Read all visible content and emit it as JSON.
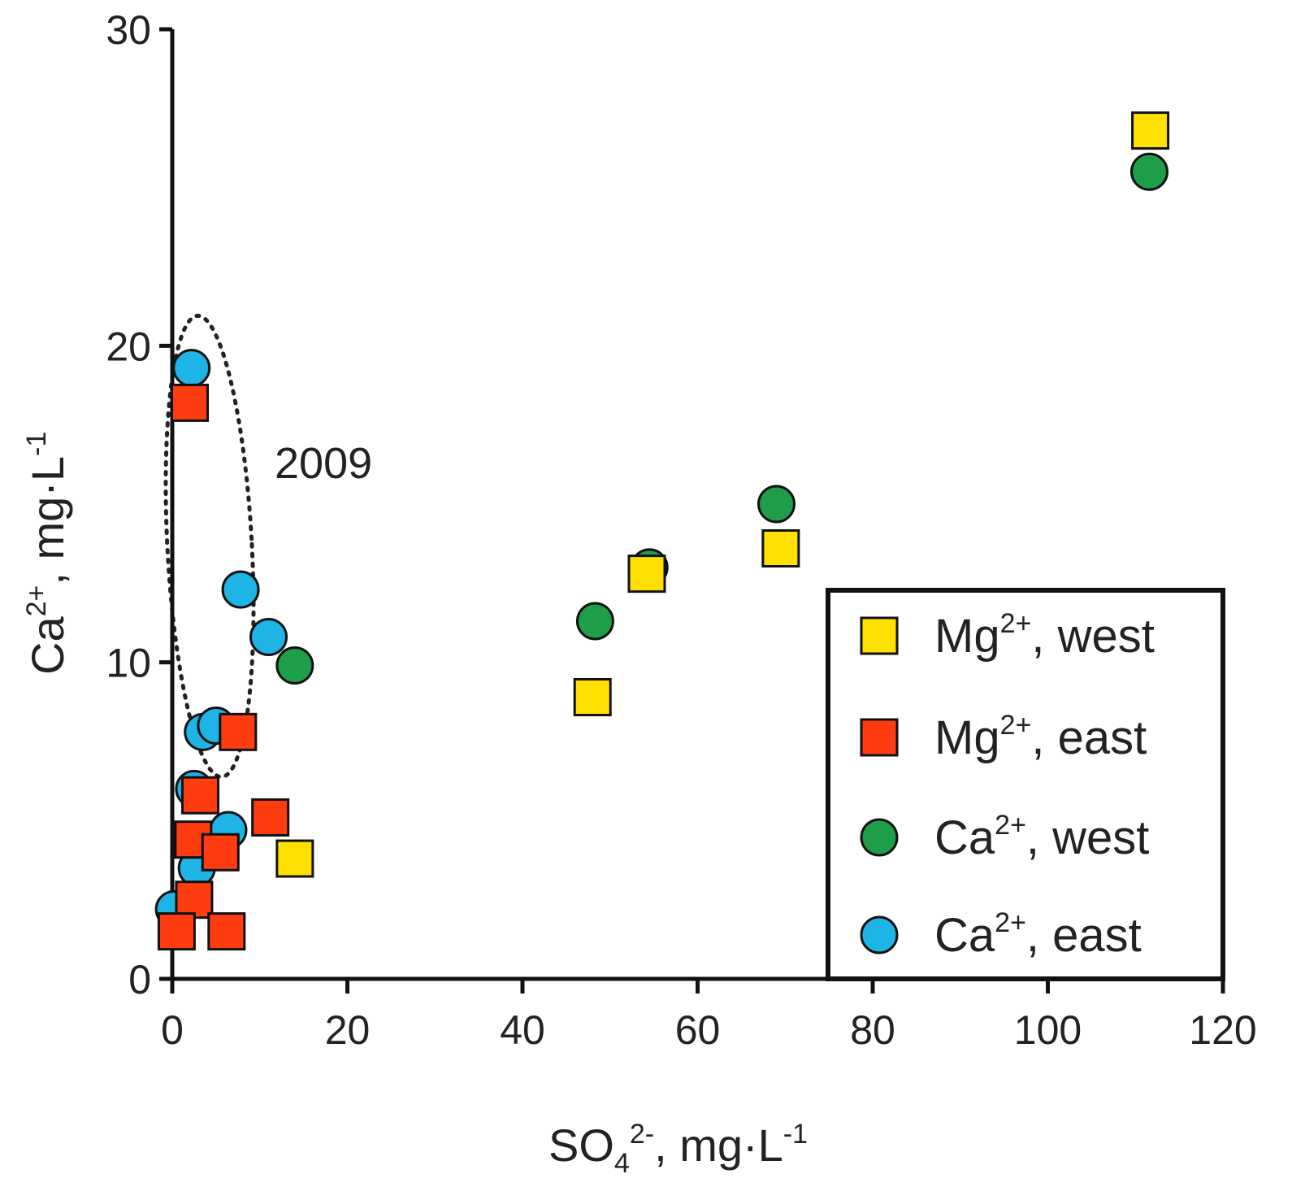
{
  "chart_data": {
    "type": "scatter",
    "xlabel": {
      "base": "SO",
      "sub": "4",
      "sup": "2-",
      "unit": ", mg·L",
      "unit_sup": "-1"
    },
    "ylabel": {
      "base": "Ca",
      "sup": "2+",
      "unit": ", mg·L",
      "unit_sup": "-1"
    },
    "xlim": [
      0,
      120
    ],
    "ylim": [
      0,
      30
    ],
    "xticks": [
      "0",
      "20",
      "40",
      "60",
      "80",
      "100",
      "120"
    ],
    "yticks": [
      "0",
      "10",
      "20",
      "30"
    ],
    "annotation": "2009",
    "legend": {
      "placement": "bottom-right",
      "entries": [
        {
          "base": "Mg",
          "sup": "2+",
          "rest": ", west"
        },
        {
          "base": "Mg",
          "sup": "2+",
          "rest": ", east"
        },
        {
          "base": "Ca",
          "sup": "2+",
          "rest": ", west"
        },
        {
          "base": "Ca",
          "sup": "2+",
          "rest": ", east"
        }
      ]
    },
    "series": [
      {
        "name": "Mg2+, west",
        "marker": "square",
        "color": "#FFE000",
        "points": [
          [
            14,
            3.8
          ],
          [
            48,
            8.9
          ],
          [
            54.2,
            12.8
          ],
          [
            69.5,
            13.6
          ],
          [
            111.7,
            26.8
          ]
        ]
      },
      {
        "name": "Mg2+, east",
        "marker": "square",
        "color": "#FF3C10",
        "points": [
          [
            2,
            18.2
          ],
          [
            7.5,
            7.8
          ],
          [
            3.2,
            5.8
          ],
          [
            11.2,
            5.1
          ],
          [
            2.4,
            4.4
          ],
          [
            5.5,
            4.0
          ],
          [
            2.5,
            2.5
          ],
          [
            0.5,
            1.5
          ],
          [
            6.2,
            1.5
          ]
        ]
      },
      {
        "name": "Ca2+, west",
        "marker": "circle",
        "color": "#1E9E48",
        "points": [
          [
            14,
            9.9
          ],
          [
            48.3,
            11.3
          ],
          [
            54.5,
            13.0
          ],
          [
            69,
            15.0
          ],
          [
            111.6,
            25.5
          ]
        ]
      },
      {
        "name": "Ca2+, east",
        "marker": "circle",
        "color": "#1EB4E6",
        "points": [
          [
            2.2,
            19.3
          ],
          [
            7.8,
            12.3
          ],
          [
            11,
            10.8
          ],
          [
            3.5,
            7.8
          ],
          [
            5,
            8.0
          ],
          [
            2.5,
            6.0
          ],
          [
            6.4,
            4.7
          ],
          [
            2.8,
            3.5
          ],
          [
            0.2,
            2.2
          ]
        ]
      }
    ]
  }
}
